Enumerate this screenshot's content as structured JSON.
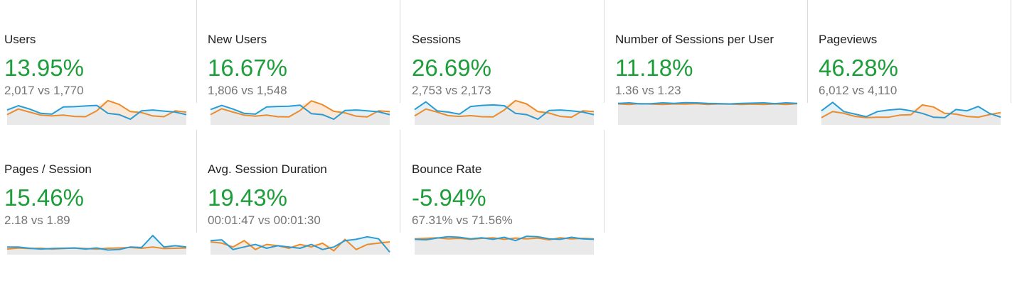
{
  "colors": {
    "positive": "#1e9e3a",
    "current_series": "#2b9bd3",
    "previous_series": "#ec8b2b",
    "current_fill": "#e3f1f8",
    "previous_fill": "#fbe8d6",
    "base_fill": "#e9e9e9",
    "divider": "#dadada"
  },
  "metrics": [
    {
      "title": "Users",
      "change": "13.95%",
      "comparison": "2,017 vs 1,770",
      "chart_data": {
        "type": "line",
        "ylim": [
          0,
          100
        ],
        "series": [
          {
            "values": [
              58,
              75,
              62,
              45,
              42,
              70,
              71,
              74,
              76,
              45,
              40,
              22,
              55,
              58,
              54,
              50,
              40
            ]
          },
          {
            "values": [
              40,
              62,
              50,
              38,
              35,
              38,
              33,
              32,
              55,
              95,
              80,
              52,
              48,
              35,
              32,
              55,
              50
            ]
          }
        ]
      }
    },
    {
      "title": "New Users",
      "change": "16.67%",
      "comparison": "1,806 vs 1,548",
      "chart_data": {
        "type": "line",
        "ylim": [
          0,
          100
        ],
        "series": [
          {
            "values": [
              60,
              76,
              62,
              45,
              42,
              70,
              72,
              73,
              77,
              44,
              40,
              22,
              56,
              58,
              55,
              51,
              40
            ]
          },
          {
            "values": [
              40,
              63,
              50,
              38,
              34,
              38,
              32,
              31,
              56,
              94,
              79,
              53,
              47,
              34,
              31,
              55,
              52
            ]
          }
        ]
      }
    },
    {
      "title": "Sessions",
      "change": "26.69%",
      "comparison": "2,753 vs 2,173",
      "chart_data": {
        "type": "line",
        "ylim": [
          0,
          100
        ],
        "series": [
          {
            "values": [
              60,
              90,
              55,
              50,
              42,
              72,
              76,
              78,
              75,
              45,
              40,
              22,
              56,
              58,
              55,
              50,
              40
            ]
          },
          {
            "values": [
              35,
              62,
              50,
              36,
              33,
              36,
              32,
              31,
              58,
              95,
              82,
              52,
              46,
              33,
              30,
              55,
              52
            ]
          }
        ]
      }
    },
    {
      "title": "Number of Sessions per User",
      "change": "11.18%",
      "comparison": "1.36 vs 1.23",
      "chart_data": {
        "type": "line",
        "ylim": [
          0,
          100
        ],
        "series": [
          {
            "values": [
              84,
              86,
              82,
              83,
              86,
              84,
              87,
              86,
              84,
              83,
              82,
              84,
              85,
              86,
              83,
              86,
              84
            ]
          },
          {
            "values": [
              82,
              80,
              83,
              81,
              80,
              82,
              81,
              83,
              80,
              82,
              81,
              80,
              81,
              80,
              82,
              80,
              83
            ]
          }
        ]
      }
    },
    {
      "title": "Pageviews",
      "change": "46.28%",
      "comparison": "6,012 vs 4,110",
      "chart_data": {
        "type": "line",
        "ylim": [
          0,
          100
        ],
        "series": [
          {
            "values": [
              55,
              88,
              52,
              42,
              32,
              52,
              58,
              62,
              55,
              45,
              30,
              28,
              60,
              55,
              72,
              45,
              30
            ]
          },
          {
            "values": [
              28,
              52,
              45,
              33,
              28,
              30,
              30,
              38,
              40,
              78,
              70,
              45,
              42,
              33,
              30,
              40,
              48
            ]
          }
        ]
      }
    },
    {
      "title": "Pages / Session",
      "change": "15.46%",
      "comparison": "2.18 vs 1.89",
      "chart_data": {
        "type": "line",
        "ylim": [
          0,
          100
        ],
        "series": [
          {
            "values": [
              30,
              30,
              25,
              22,
              24,
              25,
              26,
              22,
              26,
              18,
              20,
              30,
              28,
              75,
              30,
              35,
              30
            ]
          },
          {
            "values": [
              22,
              26,
              24,
              25,
              22,
              24,
              26,
              24,
              22,
              25,
              26,
              28,
              25,
              30,
              24,
              25,
              26
            ]
          }
        ]
      }
    },
    {
      "title": "Avg. Session Duration",
      "change": "19.43%",
      "comparison": "00:01:47 vs 00:01:30",
      "chart_data": {
        "type": "line",
        "ylim": [
          0,
          100
        ],
        "series": [
          {
            "values": [
              55,
              58,
              20,
              30,
              40,
              25,
              35,
              30,
              25,
              40,
              20,
              30,
              55,
              60,
              70,
              62,
              10
            ]
          },
          {
            "values": [
              50,
              45,
              30,
              55,
              20,
              40,
              35,
              25,
              40,
              30,
              45,
              15,
              60,
              20,
              40,
              45,
              50
            ]
          }
        ]
      }
    },
    {
      "title": "Bounce Rate",
      "change": "-5.94%",
      "comparison": "67.31% vs 71.56%",
      "chart_data": {
        "type": "line",
        "ylim": [
          0,
          100
        ],
        "series": [
          {
            "values": [
              60,
              58,
              65,
              70,
              68,
              62,
              66,
              60,
              68,
              55,
              72,
              70,
              62,
              60,
              68,
              62,
              60
            ]
          },
          {
            "values": [
              62,
              64,
              66,
              62,
              64,
              60,
              64,
              66,
              60,
              65,
              62,
              65,
              58,
              66,
              62,
              64,
              62
            ]
          }
        ]
      }
    }
  ]
}
